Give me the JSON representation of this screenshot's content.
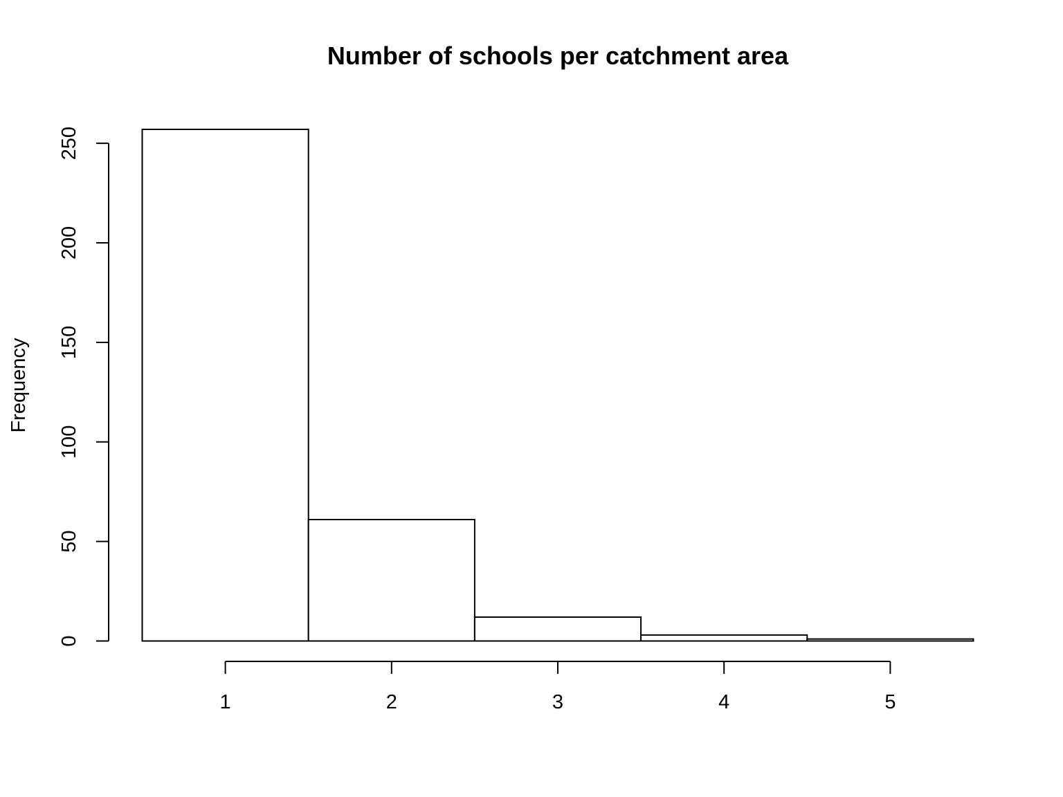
{
  "chart_data": {
    "type": "bar",
    "title": "Number of schools per catchment area",
    "xlabel": "",
    "ylabel": "Frequency",
    "categories": [
      "1",
      "2",
      "3",
      "4",
      "5"
    ],
    "values": [
      257,
      61,
      12,
      3,
      1
    ],
    "bins": [
      [
        0.5,
        1.5
      ],
      [
        1.5,
        2.5
      ],
      [
        2.5,
        3.5
      ],
      [
        3.5,
        4.5
      ],
      [
        4.5,
        5.5
      ]
    ],
    "xlim": [
      0.5,
      5.5
    ],
    "ylim": [
      0,
      257
    ],
    "x_ticks": [
      1,
      2,
      3,
      4,
      5
    ],
    "y_ticks": [
      0,
      50,
      100,
      150,
      200,
      250
    ],
    "grid": false,
    "legend": "none",
    "colors": {
      "bar_fill": "#ffffff",
      "bar_stroke": "#000000"
    }
  }
}
